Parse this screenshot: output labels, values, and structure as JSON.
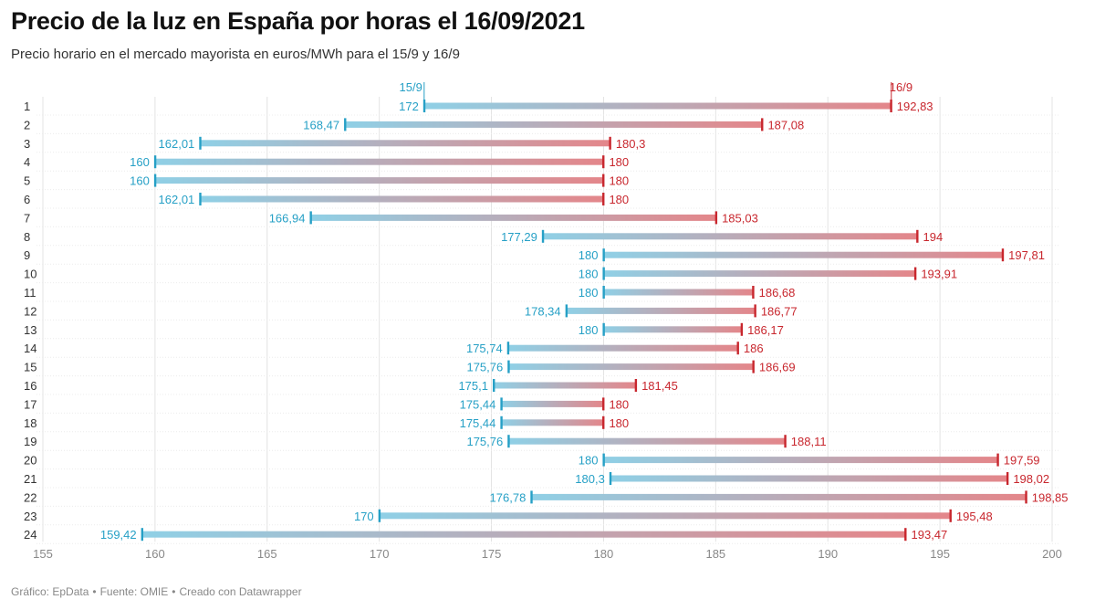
{
  "title": "Precio de la luz en España por horas el 16/09/2021",
  "subtitle": "Precio horario en el mercado mayorista en euros/MWh para el 15/9 y 16/9",
  "footer": {
    "chart_credit": "Gráfico: EpData",
    "source": "Fuente: OMIE",
    "tool": "Creado con Datawrapper"
  },
  "colors": {
    "series_15_9": "#26a0c6",
    "series_15_9_bar": "#8fd0e6",
    "series_16_9": "#c8272e",
    "series_16_9_bar": "#e4868a",
    "gridline": "#e3e3e3",
    "tick_text": "#888888",
    "row_text": "#333333"
  },
  "chart_data": {
    "type": "range-bar",
    "categories": [
      "1",
      "2",
      "3",
      "4",
      "5",
      "6",
      "7",
      "8",
      "9",
      "10",
      "11",
      "12",
      "13",
      "14",
      "15",
      "16",
      "17",
      "18",
      "19",
      "20",
      "21",
      "22",
      "23",
      "24"
    ],
    "series": [
      {
        "name": "15/9",
        "values": [
          172,
          168.47,
          162.01,
          160,
          160,
          162.01,
          166.94,
          177.29,
          180,
          180,
          180,
          178.34,
          180,
          175.74,
          175.76,
          175.1,
          175.44,
          175.44,
          175.76,
          180,
          180.3,
          176.78,
          170,
          159.42
        ],
        "labels": [
          "172",
          "168,47",
          "162,01",
          "160",
          "160",
          "162,01",
          "166,94",
          "177,29",
          "180",
          "180",
          "180",
          "178,34",
          "180",
          "175,74",
          "175,76",
          "175,1",
          "175,44",
          "175,44",
          "175,76",
          "180",
          "180,3",
          "176,78",
          "170",
          "159,42"
        ]
      },
      {
        "name": "16/9",
        "values": [
          192.83,
          187.08,
          180.3,
          180,
          180,
          180,
          185.03,
          194,
          197.81,
          193.91,
          186.68,
          186.77,
          186.17,
          186,
          186.69,
          181.45,
          180,
          180,
          188.11,
          197.59,
          198.02,
          198.85,
          195.48,
          193.47
        ],
        "labels": [
          "192,83",
          "187,08",
          "180,3",
          "180",
          "180",
          "180",
          "185,03",
          "194",
          "197,81",
          "193,91",
          "186,68",
          "186,77",
          "186,17",
          "186",
          "186,69",
          "181,45",
          "180",
          "180",
          "188,11",
          "197,59",
          "198,02",
          "198,85",
          "195,48",
          "193,47"
        ]
      }
    ],
    "xlim": [
      155,
      200
    ],
    "xticks": [
      155,
      160,
      165,
      170,
      175,
      180,
      185,
      190,
      195,
      200
    ],
    "grid": true,
    "legend": "inline-top"
  }
}
